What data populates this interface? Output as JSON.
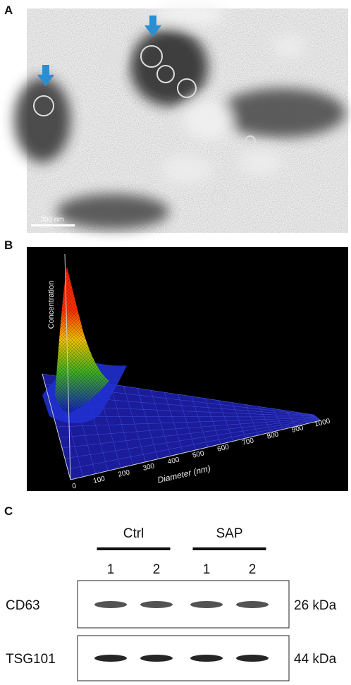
{
  "panels": [
    {
      "label": "A",
      "scale_bar": "200 nm"
    },
    {
      "label": "B",
      "y_axis_label": "Concentration",
      "x_axis_label": "Diameter (nm)",
      "x_ticks": [
        0,
        100,
        200,
        300,
        400,
        500,
        600,
        700,
        800,
        900,
        1000
      ]
    },
    {
      "label": "C",
      "groups": [
        {
          "name": "Ctrl",
          "lanes": [
            "1",
            "2"
          ]
        },
        {
          "name": "SAP",
          "lanes": [
            "1",
            "2"
          ]
        }
      ],
      "blots": [
        {
          "protein": "CD63",
          "size": "26 kDa"
        },
        {
          "protein": "TSG101",
          "size": "44 kDa"
        }
      ]
    }
  ]
}
